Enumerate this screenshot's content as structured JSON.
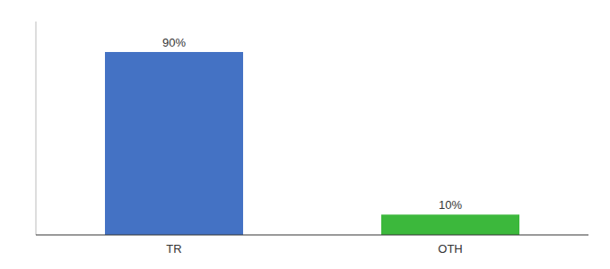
{
  "chart_data": {
    "type": "bar",
    "categories": [
      "TR",
      "OTH"
    ],
    "values": [
      90,
      10
    ],
    "value_labels": [
      "90%",
      "10%"
    ],
    "colors": [
      "#4472c4",
      "#3cb83c"
    ],
    "ylim": [
      0,
      105
    ],
    "data_labels": true,
    "tick_labels": "x"
  }
}
